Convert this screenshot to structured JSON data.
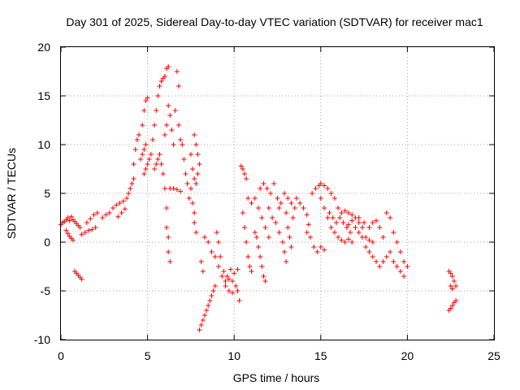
{
  "chart_data": {
    "type": "scatter",
    "title": "Day 301 of 2025, Sidereal Day-to-day VTEC variation (SDTVAR) for receiver mac1",
    "xlabel": "GPS time / hours",
    "ylabel": "SDTVAR / TECUs",
    "xlim": [
      0,
      25
    ],
    "ylim": [
      -10,
      20
    ],
    "xticks": [
      "0",
      "5",
      "10",
      "15",
      "20",
      "25"
    ],
    "yticks": [
      "-10",
      "-5",
      "0",
      "5",
      "10",
      "15",
      "20"
    ],
    "grid": true,
    "marker": "+",
    "color": "#ff0000",
    "series": [
      {
        "name": "SDTVAR",
        "points": [
          [
            0.0,
            1.8
          ],
          [
            0.1,
            2.0
          ],
          [
            0.2,
            2.1
          ],
          [
            0.3,
            2.3
          ],
          [
            0.4,
            2.5
          ],
          [
            0.5,
            2.2
          ],
          [
            0.6,
            2.6
          ],
          [
            0.7,
            2.3
          ],
          [
            0.8,
            2.1
          ],
          [
            0.9,
            1.9
          ],
          [
            1.0,
            1.7
          ],
          [
            1.1,
            1.5
          ],
          [
            0.3,
            1.2
          ],
          [
            0.4,
            0.9
          ],
          [
            0.5,
            0.6
          ],
          [
            0.6,
            0.4
          ],
          [
            0.7,
            0.2
          ],
          [
            0.8,
            -3.0
          ],
          [
            0.9,
            -3.2
          ],
          [
            1.0,
            -3.4
          ],
          [
            1.1,
            -3.6
          ],
          [
            1.2,
            -3.8
          ],
          [
            1.2,
            0.8
          ],
          [
            1.4,
            1.0
          ],
          [
            1.6,
            1.2
          ],
          [
            1.8,
            1.3
          ],
          [
            2.0,
            1.5
          ],
          [
            1.5,
            2.0
          ],
          [
            1.7,
            2.4
          ],
          [
            1.9,
            2.8
          ],
          [
            2.1,
            3.0
          ],
          [
            2.4,
            2.5
          ],
          [
            2.6,
            2.8
          ],
          [
            2.8,
            3.0
          ],
          [
            3.0,
            3.5
          ],
          [
            3.2,
            3.8
          ],
          [
            3.4,
            4.0
          ],
          [
            3.6,
            4.2
          ],
          [
            3.3,
            2.6
          ],
          [
            3.5,
            3.0
          ],
          [
            3.7,
            3.4
          ],
          [
            3.8,
            4.5
          ],
          [
            3.9,
            5.0
          ],
          [
            4.0,
            5.5
          ],
          [
            4.1,
            6.0
          ],
          [
            4.2,
            6.5
          ],
          [
            4.2,
            8.0
          ],
          [
            4.3,
            9.5
          ],
          [
            4.4,
            10.5
          ],
          [
            4.5,
            11.0
          ],
          [
            4.6,
            8.5
          ],
          [
            4.7,
            9.0
          ],
          [
            4.8,
            9.5
          ],
          [
            4.9,
            10.0
          ],
          [
            4.8,
            7.0
          ],
          [
            4.9,
            7.5
          ],
          [
            5.0,
            8.0
          ],
          [
            5.1,
            8.5
          ],
          [
            4.7,
            12.0
          ],
          [
            4.8,
            13.5
          ],
          [
            4.9,
            14.5
          ],
          [
            5.0,
            14.8
          ],
          [
            5.2,
            9.0
          ],
          [
            5.3,
            10.5
          ],
          [
            5.4,
            12.0
          ],
          [
            5.5,
            13.5
          ],
          [
            5.6,
            15.0
          ],
          [
            5.7,
            16.0
          ],
          [
            5.8,
            16.5
          ],
          [
            5.9,
            16.8
          ],
          [
            6.0,
            17.0
          ],
          [
            5.4,
            7.5
          ],
          [
            5.5,
            8.0
          ],
          [
            5.6,
            8.5
          ],
          [
            5.7,
            9.0
          ],
          [
            5.8,
            8.0
          ],
          [
            5.9,
            7.0
          ],
          [
            6.1,
            17.8
          ],
          [
            6.2,
            18.0
          ],
          [
            6.2,
            14.0
          ],
          [
            6.1,
            12.0
          ],
          [
            6.0,
            11.0
          ],
          [
            6.0,
            5.5
          ],
          [
            6.1,
            3.5
          ],
          [
            6.1,
            1.5
          ],
          [
            6.2,
            0.5
          ],
          [
            6.2,
            -1.0
          ],
          [
            6.3,
            -2.0
          ],
          [
            6.3,
            13.0
          ],
          [
            6.4,
            11.5
          ],
          [
            6.5,
            10.0
          ],
          [
            6.6,
            13.5
          ],
          [
            6.7,
            17.5
          ],
          [
            6.8,
            16.0
          ],
          [
            6.8,
            12.0
          ],
          [
            6.9,
            10.5
          ],
          [
            6.3,
            5.5
          ],
          [
            6.5,
            5.5
          ],
          [
            6.7,
            5.4
          ],
          [
            6.9,
            5.2
          ],
          [
            7.0,
            10.0
          ],
          [
            7.1,
            8.5
          ],
          [
            7.2,
            7.0
          ],
          [
            7.3,
            6.0
          ],
          [
            7.4,
            4.5
          ],
          [
            7.5,
            5.5
          ],
          [
            7.5,
            9.0
          ],
          [
            7.6,
            7.5
          ],
          [
            7.7,
            6.5
          ],
          [
            7.8,
            6.0
          ],
          [
            7.9,
            7.0
          ],
          [
            7.7,
            11.0
          ],
          [
            7.8,
            10.0
          ],
          [
            7.9,
            9.0
          ],
          [
            8.0,
            8.0
          ],
          [
            7.6,
            4.0
          ],
          [
            7.7,
            3.0
          ],
          [
            7.7,
            2.0
          ],
          [
            7.8,
            1.0
          ],
          [
            8.1,
            -2.0
          ],
          [
            8.2,
            -3.0
          ],
          [
            8.0,
            -9.0
          ],
          [
            8.1,
            -8.5
          ],
          [
            8.2,
            -8.0
          ],
          [
            8.3,
            -7.5
          ],
          [
            8.4,
            -7.0
          ],
          [
            8.5,
            -6.5
          ],
          [
            8.6,
            -6.0
          ],
          [
            8.7,
            -5.5
          ],
          [
            8.8,
            -5.0
          ],
          [
            8.9,
            -4.5
          ],
          [
            8.3,
            0.5
          ],
          [
            8.5,
            0.0
          ],
          [
            8.7,
            -1.0
          ],
          [
            8.9,
            -1.5
          ],
          [
            9.1,
            -2.5
          ],
          [
            9.3,
            -3.5
          ],
          [
            9.5,
            -4.0
          ],
          [
            9.7,
            -3.8
          ],
          [
            9.9,
            -4.0
          ],
          [
            10.1,
            -4.5
          ],
          [
            10.2,
            -5.0
          ],
          [
            10.3,
            -6.0
          ],
          [
            9.0,
            1.0
          ],
          [
            9.1,
            0.0
          ],
          [
            9.2,
            -1.5
          ],
          [
            9.4,
            -3.0
          ],
          [
            9.6,
            -3.5
          ],
          [
            9.8,
            -2.8
          ],
          [
            10.0,
            -3.2
          ],
          [
            10.2,
            -2.8
          ],
          [
            9.5,
            -4.5
          ],
          [
            9.7,
            -5.0
          ],
          [
            9.9,
            -5.2
          ],
          [
            10.4,
            7.8
          ],
          [
            10.5,
            7.5
          ],
          [
            10.6,
            7.0
          ],
          [
            10.7,
            6.5
          ],
          [
            10.5,
            3.0
          ],
          [
            10.6,
            1.5
          ],
          [
            10.7,
            0.0
          ],
          [
            10.8,
            -1.5
          ],
          [
            10.9,
            -2.5
          ],
          [
            11.0,
            -3.0
          ],
          [
            10.8,
            4.5
          ],
          [
            11.0,
            4.0
          ],
          [
            11.2,
            4.5
          ],
          [
            11.4,
            3.5
          ],
          [
            11.6,
            2.5
          ],
          [
            11.8,
            1.5
          ],
          [
            12.0,
            0.5
          ],
          [
            11.2,
            1.0
          ],
          [
            11.3,
            0.5
          ],
          [
            11.4,
            -0.5
          ],
          [
            11.5,
            -1.5
          ],
          [
            11.6,
            -2.5
          ],
          [
            11.7,
            -3.5
          ],
          [
            11.8,
            -4.0
          ],
          [
            11.5,
            5.5
          ],
          [
            11.7,
            6.0
          ],
          [
            11.9,
            5.5
          ],
          [
            12.1,
            5.0
          ],
          [
            12.3,
            6.0
          ],
          [
            12.5,
            4.5
          ],
          [
            12.6,
            3.5
          ],
          [
            12.0,
            3.5
          ],
          [
            12.2,
            2.5
          ],
          [
            12.4,
            2.0
          ],
          [
            12.6,
            1.0
          ],
          [
            12.8,
            0.0
          ],
          [
            12.9,
            -1.0
          ],
          [
            13.0,
            -2.0
          ],
          [
            12.7,
            4.0
          ],
          [
            12.9,
            5.0
          ],
          [
            13.0,
            3.0
          ],
          [
            13.1,
            1.5
          ],
          [
            13.2,
            0.5
          ],
          [
            13.3,
            -0.5
          ],
          [
            13.6,
            4.5
          ],
          [
            13.8,
            4.0
          ],
          [
            14.0,
            3.5
          ],
          [
            14.2,
            2.8
          ],
          [
            14.3,
            1.8
          ],
          [
            14.5,
            5.0
          ],
          [
            14.7,
            5.5
          ],
          [
            14.9,
            5.8
          ],
          [
            15.0,
            6.0
          ],
          [
            15.2,
            5.8
          ],
          [
            15.4,
            5.5
          ],
          [
            13.1,
            4.5
          ],
          [
            13.3,
            4.0
          ],
          [
            13.5,
            3.5
          ],
          [
            13.4,
            2.5
          ],
          [
            14.2,
            1.0
          ],
          [
            14.4,
            0.5
          ],
          [
            14.6,
            -0.5
          ],
          [
            14.8,
            -1.0
          ],
          [
            15.0,
            -0.5
          ],
          [
            15.2,
            -0.8
          ],
          [
            15.0,
            4.5
          ],
          [
            15.2,
            3.5
          ],
          [
            15.4,
            2.5
          ],
          [
            15.6,
            1.5
          ],
          [
            15.8,
            1.0
          ],
          [
            16.0,
            0.5
          ],
          [
            16.2,
            0.2
          ],
          [
            16.4,
            0.0
          ],
          [
            16.6,
            0.3
          ],
          [
            16.8,
            0.0
          ],
          [
            15.5,
            3.0
          ],
          [
            15.7,
            2.5
          ],
          [
            15.9,
            2.0
          ],
          [
            16.1,
            2.5
          ],
          [
            16.3,
            2.0
          ],
          [
            16.5,
            1.5
          ],
          [
            16.7,
            1.0
          ],
          [
            15.6,
            5.0
          ],
          [
            15.8,
            4.5
          ],
          [
            16.0,
            3.5
          ],
          [
            16.2,
            3.0
          ],
          [
            16.4,
            3.2
          ],
          [
            16.6,
            3.0
          ],
          [
            16.8,
            2.8
          ],
          [
            17.0,
            2.5
          ],
          [
            17.2,
            2.0
          ],
          [
            17.4,
            1.5
          ],
          [
            16.6,
            1.8
          ],
          [
            16.8,
            2.2
          ],
          [
            17.0,
            1.5
          ],
          [
            17.2,
            1.0
          ],
          [
            17.4,
            0.5
          ],
          [
            17.6,
            0.5
          ],
          [
            17.8,
            0.2
          ],
          [
            18.0,
            0.0
          ],
          [
            17.2,
            2.5
          ],
          [
            17.5,
            2.0
          ],
          [
            17.8,
            1.5
          ],
          [
            18.0,
            2.0
          ],
          [
            18.2,
            2.2
          ],
          [
            18.4,
            1.5
          ],
          [
            18.6,
            0.5
          ],
          [
            17.6,
            -0.5
          ],
          [
            17.8,
            -1.0
          ],
          [
            18.0,
            -1.5
          ],
          [
            18.2,
            -2.0
          ],
          [
            18.4,
            -2.5
          ],
          [
            18.6,
            -2.0
          ],
          [
            18.8,
            -1.5
          ],
          [
            19.0,
            -1.0
          ],
          [
            18.8,
            3.0
          ],
          [
            19.0,
            2.5
          ],
          [
            19.2,
            1.0
          ],
          [
            19.4,
            0.0
          ],
          [
            19.6,
            -1.0
          ],
          [
            19.8,
            -2.0
          ],
          [
            20.0,
            -2.5
          ],
          [
            19.2,
            -2.0
          ],
          [
            19.4,
            -2.5
          ],
          [
            19.6,
            -3.0
          ],
          [
            19.8,
            -3.5
          ],
          [
            22.4,
            -3.0
          ],
          [
            22.5,
            -3.2
          ],
          [
            22.6,
            -3.5
          ],
          [
            22.7,
            -4.0
          ],
          [
            22.8,
            -4.5
          ],
          [
            22.5,
            -4.5
          ],
          [
            22.6,
            -4.8
          ],
          [
            22.4,
            -7.0
          ],
          [
            22.5,
            -6.8
          ],
          [
            22.6,
            -6.5
          ],
          [
            22.7,
            -6.2
          ],
          [
            22.8,
            -6.0
          ]
        ]
      }
    ]
  }
}
